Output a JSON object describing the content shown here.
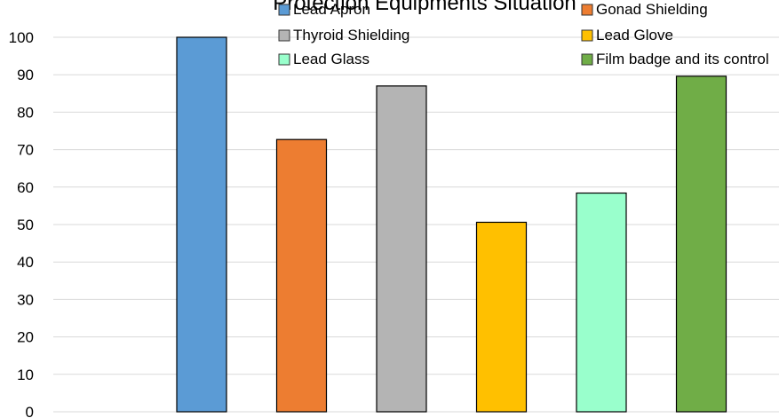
{
  "chart_data": {
    "type": "bar",
    "title": "Protection Equipments Situation",
    "xlabel": "",
    "ylabel": "",
    "ylim": [
      0,
      100
    ],
    "yticks": [
      0,
      10,
      20,
      30,
      40,
      50,
      60,
      70,
      80,
      90,
      100
    ],
    "grid": true,
    "legend_position": "top",
    "series": [
      {
        "name": "Lead Apron",
        "value": 100,
        "color": "#5b9bd5"
      },
      {
        "name": "Gonad Shielding",
        "value": 72.7,
        "color": "#ed7d31"
      },
      {
        "name": "Thyroid Shielding",
        "value": 87,
        "color": "#b4b4b4"
      },
      {
        "name": "Lead Glove",
        "value": 50.6,
        "color": "#ffc000"
      },
      {
        "name": "Lead Glass",
        "value": 58.4,
        "color": "#99ffcc"
      },
      {
        "name": "Film badge and its control",
        "value": 89.6,
        "color": "#70ad47"
      }
    ]
  }
}
